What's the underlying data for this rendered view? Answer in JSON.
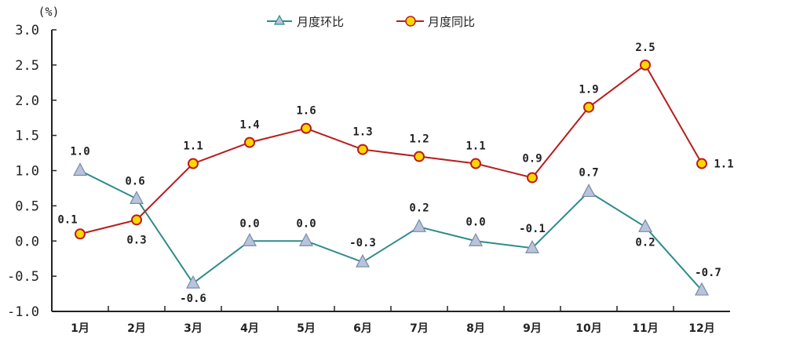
{
  "chart_data": {
    "type": "line",
    "unit_label": "(%)",
    "categories": [
      "1月",
      "2月",
      "3月",
      "4月",
      "5月",
      "6月",
      "7月",
      "8月",
      "9月",
      "10月",
      "11月",
      "12月"
    ],
    "ylim": [
      -1.0,
      3.0
    ],
    "yticks": [
      "3.0",
      "2.5",
      "2.0",
      "1.5",
      "1.0",
      "0.5",
      "0.0",
      "-0.5",
      "-1.0"
    ],
    "ytick_values": [
      3.0,
      2.5,
      2.0,
      1.5,
      1.0,
      0.5,
      0.0,
      -0.5,
      -1.0
    ],
    "grid": false,
    "legend_position": "top-center",
    "series": [
      {
        "name": "月度环比",
        "color": "#2e8b8b",
        "marker": "triangle",
        "marker_fill": "#b8c4dc",
        "values": [
          1.0,
          0.6,
          -0.6,
          0.0,
          0.0,
          -0.3,
          0.2,
          0.0,
          -0.1,
          0.7,
          0.2,
          -0.7
        ],
        "labels": [
          "1.0",
          "0.6",
          "-0.6",
          "0.0",
          "0.0",
          "-0.3",
          "0.2",
          "0.0",
          "-0.1",
          "0.7",
          "0.2",
          "-0.7"
        ]
      },
      {
        "name": "月度同比",
        "color": "#b81c1c",
        "marker": "circle",
        "marker_fill": "#ffd700",
        "values": [
          0.1,
          0.3,
          1.1,
          1.4,
          1.6,
          1.3,
          1.2,
          1.1,
          0.9,
          1.9,
          2.5,
          1.1
        ],
        "labels": [
          "0.1",
          "0.3",
          "1.1",
          "1.4",
          "1.6",
          "1.3",
          "1.2",
          "1.1",
          "0.9",
          "1.9",
          "2.5",
          "1.1"
        ]
      }
    ]
  }
}
